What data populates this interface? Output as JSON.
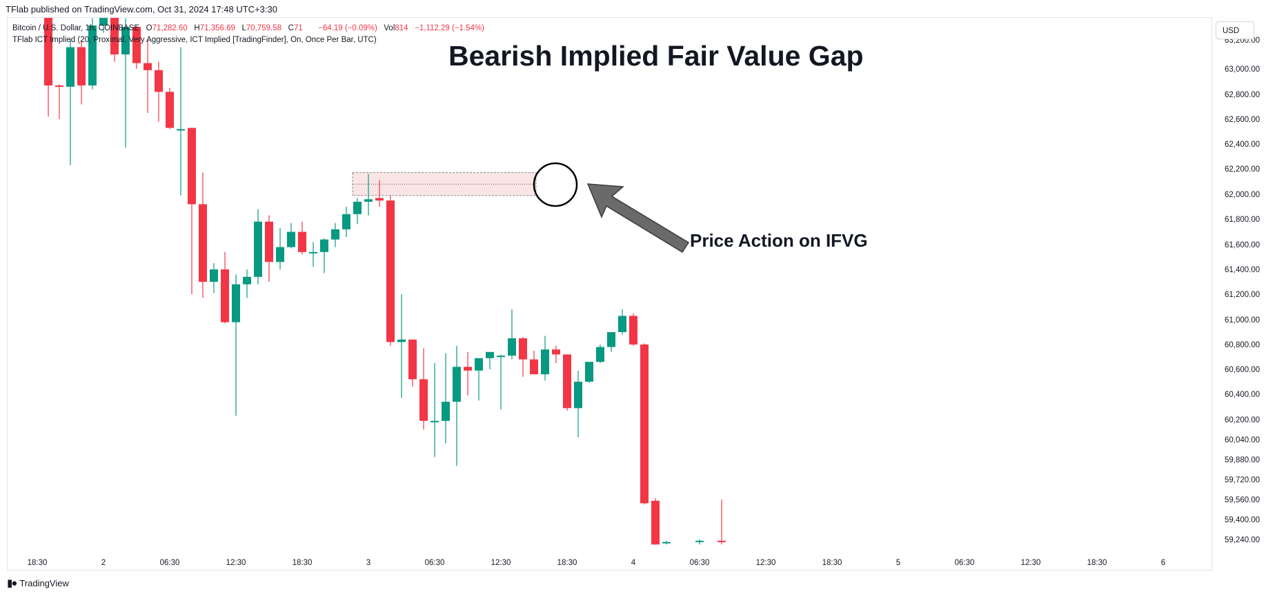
{
  "header": {
    "published": "TFlab published on TradingView.com, Oct 31, 2024 17:48 UTC+3:30"
  },
  "legend": {
    "symbol": "Bitcoin / U.S. Dollar, 1h, COINBASE",
    "open_label": "O",
    "open_value": "71,282.60",
    "high_label": "H",
    "high_value": "71,356.69",
    "low_label": "L",
    "low_value": "70,759.58",
    "close_label": "C",
    "close_value": "71",
    "change_value": "−64.19 (−0.09%)",
    "vol_label": "Vol",
    "vol_value": "814",
    "vol_change": "−1,112.29 (−1.54%)",
    "indicator": "TFlab ICT Implied (20, Proximal, Very Aggressive, ICT Implied [TradingFinder], On, Once Per Bar, UTC)"
  },
  "currency_button": "USD",
  "annotations": {
    "title": "Bearish Implied Fair Value Gap",
    "arrow_label": "Price Action on IFVG"
  },
  "branding": {
    "logo_icon": "tradingview-logo-icon",
    "name": "TradingView"
  },
  "colors": {
    "bull": "#089981",
    "bear": "#f23645",
    "fvg_zone": "#f7dede"
  },
  "chart_data": {
    "type": "candlestick",
    "price_axis": {
      "labels": [
        "63,200.00",
        "63,000.00",
        "62,800.00",
        "62,600.00",
        "62,400.00",
        "62,200.00",
        "62,000.00",
        "61,800.00",
        "61,600.00",
        "61,400.00",
        "61,200.00",
        "61,000.00",
        "60,800.00",
        "60,600.00",
        "60,400.00",
        "60,200.00",
        "60,040.00",
        "59,880.00",
        "59,720.00",
        "59,560.00",
        "59,400.00",
        "59,240.00"
      ],
      "ticks": [
        63200,
        63000,
        62800,
        62600,
        62400,
        62200,
        62000,
        61800,
        61600,
        61400,
        61200,
        61000,
        60800,
        60600,
        60400,
        60200,
        60040,
        59880,
        59720,
        59560,
        59400,
        59240
      ]
    },
    "time_axis": {
      "labels": [
        "18:30",
        "2",
        "06:30",
        "12:30",
        "18:30",
        "3",
        "06:30",
        "12:30",
        "18:30",
        "4",
        "06:30",
        "12:30",
        "18:30",
        "5",
        "06:30",
        "12:30",
        "18:30",
        "6"
      ],
      "positions": [
        -1,
        5,
        11,
        17,
        23,
        29,
        35,
        41,
        47,
        53,
        59,
        65,
        71,
        77,
        83,
        89,
        95,
        101
      ]
    },
    "fvg_zone": {
      "top": 62170,
      "bottom": 61990,
      "mid": 62080,
      "start_index": 28,
      "end_index": 44
    },
    "candles": [
      {
        "o": 63400,
        "h": 63450,
        "l": 62620,
        "c": 62870
      },
      {
        "o": 62870,
        "h": 62880,
        "l": 62600,
        "c": 62860
      },
      {
        "o": 62860,
        "h": 63200,
        "l": 62230,
        "c": 63150
      },
      {
        "o": 63150,
        "h": 63200,
        "l": 62720,
        "c": 62870
      },
      {
        "o": 62870,
        "h": 63350,
        "l": 62840,
        "c": 63300
      },
      {
        "o": 63300,
        "h": 63450,
        "l": 63250,
        "c": 63420
      },
      {
        "o": 63400,
        "h": 63430,
        "l": 63050,
        "c": 63100
      },
      {
        "o": 63100,
        "h": 63350,
        "l": 62370,
        "c": 63290
      },
      {
        "o": 63290,
        "h": 63300,
        "l": 63000,
        "c": 63040
      },
      {
        "o": 63040,
        "h": 63200,
        "l": 62650,
        "c": 62990
      },
      {
        "o": 62990,
        "h": 63050,
        "l": 62580,
        "c": 62820
      },
      {
        "o": 62820,
        "h": 62850,
        "l": 62520,
        "c": 62530
      },
      {
        "o": 62520,
        "h": 63150,
        "l": 61990,
        "c": 62520
      },
      {
        "o": 62530,
        "h": 62530,
        "l": 61200,
        "c": 61920
      },
      {
        "o": 61920,
        "h": 62170,
        "l": 61170,
        "c": 61300
      },
      {
        "o": 61300,
        "h": 61450,
        "l": 61210,
        "c": 61400
      },
      {
        "o": 61400,
        "h": 61540,
        "l": 60970,
        "c": 60980
      },
      {
        "o": 60980,
        "h": 61360,
        "l": 60230,
        "c": 61280
      },
      {
        "o": 61280,
        "h": 61400,
        "l": 61170,
        "c": 61340
      },
      {
        "o": 61340,
        "h": 61880,
        "l": 61280,
        "c": 61780
      },
      {
        "o": 61780,
        "h": 61830,
        "l": 61300,
        "c": 61460
      },
      {
        "o": 61460,
        "h": 61730,
        "l": 61400,
        "c": 61580
      },
      {
        "o": 61580,
        "h": 61770,
        "l": 61570,
        "c": 61700
      },
      {
        "o": 61700,
        "h": 61780,
        "l": 61520,
        "c": 61540
      },
      {
        "o": 61540,
        "h": 61620,
        "l": 61420,
        "c": 61540
      },
      {
        "o": 61540,
        "h": 61650,
        "l": 61370,
        "c": 61640
      },
      {
        "o": 61640,
        "h": 61770,
        "l": 61580,
        "c": 61720
      },
      {
        "o": 61720,
        "h": 61900,
        "l": 61660,
        "c": 61840
      },
      {
        "o": 61840,
        "h": 61970,
        "l": 61760,
        "c": 61940
      },
      {
        "o": 61940,
        "h": 62160,
        "l": 61830,
        "c": 61960
      },
      {
        "o": 61970,
        "h": 62110,
        "l": 61900,
        "c": 61950
      },
      {
        "o": 61950,
        "h": 61990,
        "l": 60790,
        "c": 60820
      },
      {
        "o": 60820,
        "h": 61200,
        "l": 60370,
        "c": 60840
      },
      {
        "o": 60840,
        "h": 60840,
        "l": 60460,
        "c": 60520
      },
      {
        "o": 60520,
        "h": 60770,
        "l": 60120,
        "c": 60190
      },
      {
        "o": 60180,
        "h": 60650,
        "l": 59900,
        "c": 60190
      },
      {
        "o": 60190,
        "h": 60730,
        "l": 60010,
        "c": 60340
      },
      {
        "o": 60340,
        "h": 60790,
        "l": 59830,
        "c": 60620
      },
      {
        "o": 60620,
        "h": 60740,
        "l": 60390,
        "c": 60590
      },
      {
        "o": 60590,
        "h": 60680,
        "l": 60350,
        "c": 60690
      },
      {
        "o": 60690,
        "h": 60720,
        "l": 60600,
        "c": 60740
      },
      {
        "o": 60710,
        "h": 60720,
        "l": 60280,
        "c": 60710
      },
      {
        "o": 60710,
        "h": 61080,
        "l": 60680,
        "c": 60850
      },
      {
        "o": 60850,
        "h": 60860,
        "l": 60540,
        "c": 60680
      },
      {
        "o": 60680,
        "h": 60750,
        "l": 60560,
        "c": 60560
      },
      {
        "o": 60560,
        "h": 60870,
        "l": 60510,
        "c": 60760
      },
      {
        "o": 60760,
        "h": 60790,
        "l": 60650,
        "c": 60720
      },
      {
        "o": 60720,
        "h": 60720,
        "l": 60270,
        "c": 60290
      },
      {
        "o": 60290,
        "h": 60590,
        "l": 60060,
        "c": 60500
      },
      {
        "o": 60500,
        "h": 60660,
        "l": 60490,
        "c": 60660
      },
      {
        "o": 60660,
        "h": 60800,
        "l": 60650,
        "c": 60780
      },
      {
        "o": 60780,
        "h": 60900,
        "l": 60740,
        "c": 60900
      },
      {
        "o": 60900,
        "h": 61080,
        "l": 60880,
        "c": 61030
      },
      {
        "o": 61030,
        "h": 61050,
        "l": 60790,
        "c": 60800
      },
      {
        "o": 60800,
        "h": 60810,
        "l": 59520,
        "c": 59530
      },
      {
        "o": 59550,
        "h": 59570,
        "l": 59200,
        "c": 59200
      },
      {
        "o": 59220,
        "h": 59230,
        "l": 59200,
        "c": 59220
      },
      null,
      null,
      {
        "o": 59220,
        "h": 59240,
        "l": 59200,
        "c": 59230
      },
      null,
      {
        "o": 59230,
        "h": 59560,
        "l": 59200,
        "c": 59220
      }
    ]
  }
}
